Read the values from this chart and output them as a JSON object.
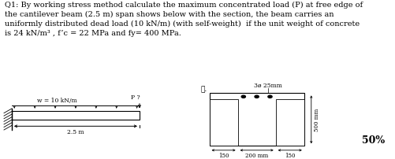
{
  "title_text_line1": "Q1: By working stress method calculate the maximum concentrated load (P) at free edge of",
  "title_text_line2": "the cantilever beam (2.5 m) span shows below with the section, the beam carries an",
  "title_text_line3": "uniformly distributed dead load (10 kN/m) (with self-weight)  if the unit weight of concrete",
  "title_text_line4": "is 24 kN/m³ , f’c = 22 MPa and fy= 400 MPa.",
  "background": "#ffffff",
  "text_color": "#000000",
  "percent_text": "50%",
  "beam_label_w": "w = 10 kN/m",
  "beam_label_span": "2.5 m",
  "beam_label_p": "P ?",
  "section_label_top": "3ø 25mm",
  "section_label_left": "ℓ.",
  "section_dim_bottom_left": "150",
  "section_dim_bottom_mid": "200 mm",
  "section_dim_bottom_right": "150",
  "section_dim_right": "500 mm",
  "title_fontsize": 7.0,
  "diagram_fontsize": 5.5,
  "section_fontsize": 5.5
}
